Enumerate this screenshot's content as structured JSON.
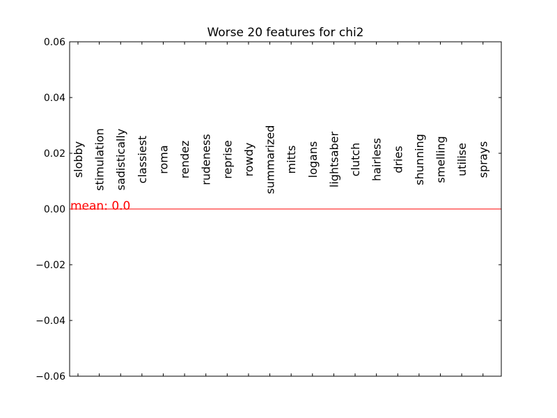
{
  "chart_data": {
    "type": "bar",
    "title": "Worse 20 features for chi2",
    "xlabel": "",
    "ylabel": "",
    "ylim": [
      -0.06,
      0.06
    ],
    "yticks": [
      0.06,
      0.04,
      0.02,
      0.0,
      -0.02,
      -0.04,
      -0.06
    ],
    "ytick_labels": [
      "0.06",
      "0.04",
      "0.02",
      "0.00",
      "−0.02",
      "−0.04",
      "−0.06"
    ],
    "categories": [
      "slobby",
      "stimulation",
      "sadistically",
      "classiest",
      "roma",
      "rendez",
      "rudeness",
      "reprise",
      "rowdy",
      "summarized",
      "mitts",
      "logans",
      "lightsaber",
      "clutch",
      "hairless",
      "dries",
      "shunning",
      "smelling",
      "utilise",
      "sprays"
    ],
    "values": [
      0,
      0,
      0,
      0,
      0,
      0,
      0,
      0,
      0,
      0,
      0,
      0,
      0,
      0,
      0,
      0,
      0,
      0,
      0,
      0
    ],
    "mean": 0.0,
    "mean_label": "mean: 0.0",
    "mean_color": "#ff0000",
    "grid": false,
    "legend": "none"
  }
}
